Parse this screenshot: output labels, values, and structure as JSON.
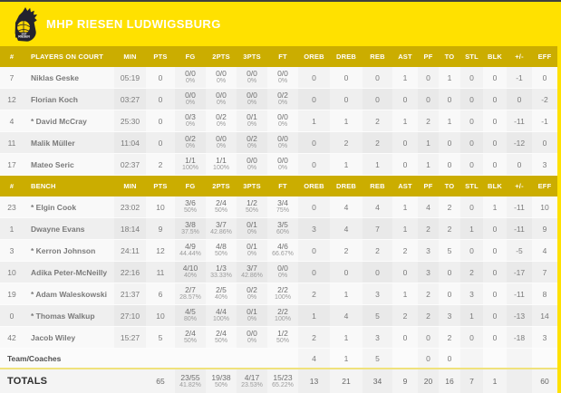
{
  "team": {
    "name": "MHP RIESEN LUDWIGSBURG"
  },
  "colors": {
    "brand_yellow": "#FFE100",
    "header_gold": "#CBAD00",
    "ball_yellow": "#FFD800",
    "logo_dark": "#23232e"
  },
  "logo": {
    "icon": "riesen-eagle-basketball-logo",
    "text_top": "MHP",
    "text_bottom": "RIESEN"
  },
  "box_score": {
    "starter_mark": "*",
    "stat_keys": [
      "min",
      "pts",
      "fg",
      "p2",
      "p3",
      "ft",
      "oreb",
      "dreb",
      "reb",
      "ast",
      "pf",
      "to",
      "stl",
      "blk",
      "pm",
      "eff"
    ],
    "header_on_court": [
      "#",
      "PLAYERS ON COURT",
      "MIN",
      "PTS",
      "FG",
      "2PTS",
      "3PTS",
      "FT",
      "OREB",
      "DREB",
      "REB",
      "AST",
      "PF",
      "TO",
      "STL",
      "BLK",
      "+/-",
      "EFF"
    ],
    "header_bench": [
      "#",
      "BENCH",
      "MIN",
      "PTS",
      "FG",
      "2PTS",
      "3PTS",
      "FT",
      "OREB",
      "DREB",
      "REB",
      "AST",
      "PF",
      "TO",
      "STL",
      "BLK",
      "+/-",
      "EFF"
    ],
    "on_court": [
      {
        "num": "7",
        "name": "Niklas Geske",
        "starter": false,
        "min": "05:19",
        "pts": "0",
        "fg": [
          "0/0",
          "0%"
        ],
        "p2": [
          "0/0",
          "0%"
        ],
        "p3": [
          "0/0",
          "0%"
        ],
        "ft": [
          "0/0",
          "0%"
        ],
        "oreb": "0",
        "dreb": "0",
        "reb": "0",
        "ast": "1",
        "pf": "0",
        "to": "1",
        "stl": "0",
        "blk": "0",
        "pm": "-1",
        "eff": "0"
      },
      {
        "num": "12",
        "name": "Florian Koch",
        "starter": false,
        "min": "03:27",
        "pts": "0",
        "fg": [
          "0/0",
          "0%"
        ],
        "p2": [
          "0/0",
          "0%"
        ],
        "p3": [
          "0/0",
          "0%"
        ],
        "ft": [
          "0/2",
          "0%"
        ],
        "oreb": "0",
        "dreb": "0",
        "reb": "0",
        "ast": "0",
        "pf": "0",
        "to": "0",
        "stl": "0",
        "blk": "0",
        "pm": "0",
        "eff": "-2"
      },
      {
        "num": "4",
        "name": "David McCray",
        "starter": true,
        "min": "25:30",
        "pts": "0",
        "fg": [
          "0/3",
          "0%"
        ],
        "p2": [
          "0/2",
          "0%"
        ],
        "p3": [
          "0/1",
          "0%"
        ],
        "ft": [
          "0/0",
          "0%"
        ],
        "oreb": "1",
        "dreb": "1",
        "reb": "2",
        "ast": "1",
        "pf": "2",
        "to": "1",
        "stl": "0",
        "blk": "0",
        "pm": "-11",
        "eff": "-1"
      },
      {
        "num": "11",
        "name": "Malik Müller",
        "starter": false,
        "min": "11:04",
        "pts": "0",
        "fg": [
          "0/2",
          "0%"
        ],
        "p2": [
          "0/0",
          "0%"
        ],
        "p3": [
          "0/2",
          "0%"
        ],
        "ft": [
          "0/0",
          "0%"
        ],
        "oreb": "0",
        "dreb": "2",
        "reb": "2",
        "ast": "0",
        "pf": "1",
        "to": "0",
        "stl": "0",
        "blk": "0",
        "pm": "-12",
        "eff": "0"
      },
      {
        "num": "17",
        "name": "Mateo Seric",
        "starter": false,
        "min": "02:37",
        "pts": "2",
        "fg": [
          "1/1",
          "100%"
        ],
        "p2": [
          "1/1",
          "100%"
        ],
        "p3": [
          "0/0",
          "0%"
        ],
        "ft": [
          "0/0",
          "0%"
        ],
        "oreb": "0",
        "dreb": "1",
        "reb": "1",
        "ast": "0",
        "pf": "1",
        "to": "0",
        "stl": "0",
        "blk": "0",
        "pm": "0",
        "eff": "3"
      }
    ],
    "bench": [
      {
        "num": "23",
        "name": "Elgin Cook",
        "starter": true,
        "min": "23:02",
        "pts": "10",
        "fg": [
          "3/6",
          "50%"
        ],
        "p2": [
          "2/4",
          "50%"
        ],
        "p3": [
          "1/2",
          "50%"
        ],
        "ft": [
          "3/4",
          "75%"
        ],
        "oreb": "0",
        "dreb": "4",
        "reb": "4",
        "ast": "1",
        "pf": "4",
        "to": "2",
        "stl": "0",
        "blk": "1",
        "pm": "-11",
        "eff": "10"
      },
      {
        "num": "1",
        "name": "Dwayne Evans",
        "starter": false,
        "min": "18:14",
        "pts": "9",
        "fg": [
          "3/8",
          "37.5%"
        ],
        "p2": [
          "3/7",
          "42.86%"
        ],
        "p3": [
          "0/1",
          "0%"
        ],
        "ft": [
          "3/5",
          "60%"
        ],
        "oreb": "3",
        "dreb": "4",
        "reb": "7",
        "ast": "1",
        "pf": "2",
        "to": "2",
        "stl": "1",
        "blk": "0",
        "pm": "-11",
        "eff": "9"
      },
      {
        "num": "3",
        "name": "Kerron Johnson",
        "starter": true,
        "min": "24:11",
        "pts": "12",
        "fg": [
          "4/9",
          "44.44%"
        ],
        "p2": [
          "4/8",
          "50%"
        ],
        "p3": [
          "0/1",
          "0%"
        ],
        "ft": [
          "4/6",
          "66.67%"
        ],
        "oreb": "0",
        "dreb": "2",
        "reb": "2",
        "ast": "2",
        "pf": "3",
        "to": "5",
        "stl": "0",
        "blk": "0",
        "pm": "-5",
        "eff": "4"
      },
      {
        "num": "10",
        "name": "Adika Peter-McNeilly",
        "starter": false,
        "min": "22:16",
        "pts": "11",
        "fg": [
          "4/10",
          "40%"
        ],
        "p2": [
          "1/3",
          "33.33%"
        ],
        "p3": [
          "3/7",
          "42.86%"
        ],
        "ft": [
          "0/0",
          "0%"
        ],
        "oreb": "0",
        "dreb": "0",
        "reb": "0",
        "ast": "0",
        "pf": "3",
        "to": "0",
        "stl": "2",
        "blk": "0",
        "pm": "-17",
        "eff": "7"
      },
      {
        "num": "19",
        "name": "Adam Waleskowski",
        "starter": true,
        "min": "21:37",
        "pts": "6",
        "fg": [
          "2/7",
          "28.57%"
        ],
        "p2": [
          "2/5",
          "40%"
        ],
        "p3": [
          "0/2",
          "0%"
        ],
        "ft": [
          "2/2",
          "100%"
        ],
        "oreb": "2",
        "dreb": "1",
        "reb": "3",
        "ast": "1",
        "pf": "2",
        "to": "0",
        "stl": "3",
        "blk": "0",
        "pm": "-11",
        "eff": "8"
      },
      {
        "num": "0",
        "name": "Thomas Walkup",
        "starter": true,
        "min": "27:10",
        "pts": "10",
        "fg": [
          "4/5",
          "80%"
        ],
        "p2": [
          "4/4",
          "100%"
        ],
        "p3": [
          "0/1",
          "0%"
        ],
        "ft": [
          "2/2",
          "100%"
        ],
        "oreb": "1",
        "dreb": "4",
        "reb": "5",
        "ast": "2",
        "pf": "2",
        "to": "3",
        "stl": "1",
        "blk": "0",
        "pm": "-13",
        "eff": "14"
      },
      {
        "num": "42",
        "name": "Jacob Wiley",
        "starter": false,
        "min": "15:27",
        "pts": "5",
        "fg": [
          "2/4",
          "50%"
        ],
        "p2": [
          "2/4",
          "50%"
        ],
        "p3": [
          "0/0",
          "0%"
        ],
        "ft": [
          "1/2",
          "50%"
        ],
        "oreb": "2",
        "dreb": "1",
        "reb": "3",
        "ast": "0",
        "pf": "0",
        "to": "2",
        "stl": "0",
        "blk": "0",
        "pm": "-18",
        "eff": "3"
      }
    ],
    "team_coaches": {
      "label": "Team/Coaches",
      "oreb": "4",
      "dreb": "1",
      "reb": "5",
      "ast": "",
      "pf": "0",
      "to": "0",
      "stl": "",
      "blk": "",
      "pm": "",
      "eff": ""
    },
    "totals": {
      "label": "TOTALS",
      "pts": "65",
      "fg": [
        "23/55",
        "41.82%"
      ],
      "p2": [
        "19/38",
        "50%"
      ],
      "p3": [
        "4/17",
        "23.53%"
      ],
      "ft": [
        "15/23",
        "65.22%"
      ],
      "oreb": "13",
      "dreb": "21",
      "reb": "34",
      "ast": "9",
      "pf": "20",
      "to": "16",
      "stl": "7",
      "blk": "1",
      "pm": "",
      "eff": "60"
    }
  }
}
